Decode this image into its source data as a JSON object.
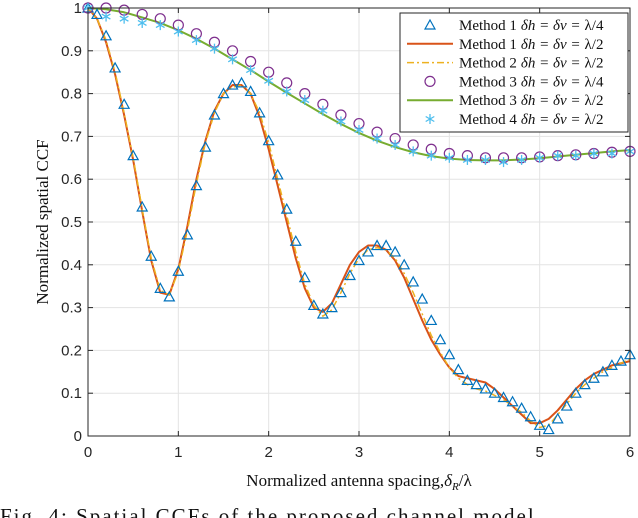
{
  "chart_data": {
    "type": "line",
    "xlabel": "Normalized antenna spacing,δ_R/λ",
    "xlabel_main": "Normalized antenna spacing,",
    "xlabel_math": "δ",
    "xlabel_sub": "R",
    "xlabel_tail": "/λ",
    "ylabel": "Normalized spatial CCF",
    "xlim": [
      0,
      6
    ],
    "ylim": [
      0,
      1
    ],
    "xticks": [
      "0",
      "1",
      "2",
      "3",
      "4",
      "5",
      "6"
    ],
    "yticks": [
      "0",
      "0.1",
      "0.2",
      "0.3",
      "0.4",
      "0.5",
      "0.6",
      "0.7",
      "0.8",
      "0.9",
      "1"
    ],
    "grid": true,
    "legend_position": "top-right",
    "series": [
      {
        "name": "Method 1 δh = δv = λ/4",
        "method": "Method 1",
        "spacing": "λ/4",
        "style": "triangle",
        "color": "#0072BD",
        "x": [
          0,
          0.1,
          0.2,
          0.3,
          0.4,
          0.5,
          0.6,
          0.7,
          0.8,
          0.9,
          1.0,
          1.1,
          1.2,
          1.3,
          1.4,
          1.5,
          1.6,
          1.7,
          1.8,
          1.9,
          2.0,
          2.1,
          2.2,
          2.3,
          2.4,
          2.5,
          2.6,
          2.7,
          2.8,
          2.9,
          3.0,
          3.1,
          3.2,
          3.3,
          3.4,
          3.5,
          3.6,
          3.7,
          3.8,
          3.9,
          4.0,
          4.1,
          4.2,
          4.3,
          4.4,
          4.5,
          4.6,
          4.7,
          4.8,
          4.9,
          5.0,
          5.1,
          5.2,
          5.3,
          5.4,
          5.5,
          5.6,
          5.7,
          5.8,
          5.9,
          6.0
        ],
        "y": [
          1.0,
          0.985,
          0.935,
          0.86,
          0.775,
          0.655,
          0.535,
          0.42,
          0.345,
          0.325,
          0.385,
          0.47,
          0.585,
          0.675,
          0.75,
          0.8,
          0.82,
          0.825,
          0.805,
          0.755,
          0.69,
          0.61,
          0.53,
          0.455,
          0.37,
          0.305,
          0.285,
          0.3,
          0.335,
          0.375,
          0.41,
          0.43,
          0.445,
          0.445,
          0.43,
          0.4,
          0.36,
          0.32,
          0.27,
          0.225,
          0.19,
          0.155,
          0.13,
          0.12,
          0.11,
          0.1,
          0.09,
          0.08,
          0.065,
          0.045,
          0.025,
          0.015,
          0.04,
          0.07,
          0.1,
          0.12,
          0.135,
          0.15,
          0.165,
          0.175,
          0.19
        ]
      },
      {
        "name": "Method 1 δh = δv = λ/2",
        "method": "Method 1",
        "spacing": "λ/2",
        "style": "solid",
        "color": "#D95319",
        "x": [
          0,
          0.1,
          0.2,
          0.3,
          0.4,
          0.5,
          0.6,
          0.7,
          0.8,
          0.9,
          1.0,
          1.1,
          1.2,
          1.3,
          1.4,
          1.5,
          1.6,
          1.7,
          1.8,
          1.9,
          2.0,
          2.1,
          2.2,
          2.3,
          2.4,
          2.5,
          2.6,
          2.7,
          2.8,
          2.9,
          3.0,
          3.1,
          3.2,
          3.3,
          3.4,
          3.5,
          3.6,
          3.7,
          3.8,
          3.9,
          4.0,
          4.1,
          4.2,
          4.3,
          4.4,
          4.5,
          4.6,
          4.7,
          4.8,
          4.9,
          5.0,
          5.1,
          5.2,
          5.3,
          5.4,
          5.5,
          5.6,
          5.7,
          5.8,
          5.9,
          6.0
        ],
        "y": [
          1.0,
          0.975,
          0.92,
          0.845,
          0.75,
          0.645,
          0.525,
          0.41,
          0.335,
          0.33,
          0.39,
          0.49,
          0.6,
          0.69,
          0.76,
          0.8,
          0.82,
          0.82,
          0.8,
          0.745,
          0.67,
          0.585,
          0.5,
          0.415,
          0.345,
          0.3,
          0.29,
          0.31,
          0.355,
          0.4,
          0.43,
          0.445,
          0.445,
          0.435,
          0.41,
          0.37,
          0.32,
          0.27,
          0.225,
          0.19,
          0.16,
          0.14,
          0.135,
          0.13,
          0.125,
          0.11,
          0.09,
          0.07,
          0.05,
          0.03,
          0.03,
          0.04,
          0.06,
          0.085,
          0.11,
          0.13,
          0.145,
          0.155,
          0.165,
          0.17,
          0.175
        ]
      },
      {
        "name": "Method 2 δh = δv = λ/2",
        "method": "Method 2",
        "spacing": "λ/2",
        "style": "dashdot",
        "color": "#EDB120",
        "x": [
          0,
          0.1,
          0.2,
          0.3,
          0.4,
          0.5,
          0.6,
          0.7,
          0.8,
          0.9,
          1.0,
          1.1,
          1.2,
          1.3,
          1.4,
          1.5,
          1.6,
          1.7,
          1.8,
          1.9,
          2.0,
          2.1,
          2.2,
          2.3,
          2.4,
          2.5,
          2.6,
          2.7,
          2.8,
          2.9,
          3.0,
          3.1,
          3.2,
          3.3,
          3.4,
          3.5,
          3.6,
          3.7,
          3.8,
          3.9,
          4.0,
          4.1,
          4.2,
          4.3,
          4.4,
          4.5,
          4.6,
          4.7,
          4.8,
          4.9,
          5.0,
          5.1,
          5.2,
          5.3,
          5.4,
          5.5,
          5.6,
          5.7,
          5.8,
          5.9,
          6.0
        ],
        "y": [
          1.0,
          0.975,
          0.925,
          0.85,
          0.755,
          0.65,
          0.53,
          0.415,
          0.34,
          0.33,
          0.385,
          0.48,
          0.59,
          0.685,
          0.755,
          0.8,
          0.815,
          0.82,
          0.8,
          0.755,
          0.685,
          0.6,
          0.515,
          0.43,
          0.355,
          0.305,
          0.28,
          0.295,
          0.335,
          0.38,
          0.415,
          0.435,
          0.44,
          0.435,
          0.415,
          0.38,
          0.335,
          0.285,
          0.235,
          0.195,
          0.16,
          0.135,
          0.12,
          0.11,
          0.105,
          0.095,
          0.085,
          0.07,
          0.055,
          0.035,
          0.02,
          0.025,
          0.05,
          0.075,
          0.1,
          0.12,
          0.135,
          0.15,
          0.16,
          0.17,
          0.18
        ]
      },
      {
        "name": "Method 3 δh = δv = λ/4",
        "method": "Method 3",
        "spacing": "λ/4",
        "style": "circle",
        "color": "#7E2F8E",
        "x": [
          0,
          0.2,
          0.4,
          0.6,
          0.8,
          1.0,
          1.2,
          1.4,
          1.6,
          1.8,
          2.0,
          2.2,
          2.4,
          2.6,
          2.8,
          3.0,
          3.2,
          3.4,
          3.6,
          3.8,
          4.0,
          4.2,
          4.4,
          4.6,
          4.8,
          5.0,
          5.2,
          5.4,
          5.6,
          5.8,
          6.0
        ],
        "y": [
          1.0,
          1.0,
          0.995,
          0.985,
          0.975,
          0.96,
          0.94,
          0.92,
          0.9,
          0.875,
          0.85,
          0.825,
          0.8,
          0.775,
          0.75,
          0.73,
          0.71,
          0.695,
          0.68,
          0.67,
          0.66,
          0.655,
          0.65,
          0.65,
          0.65,
          0.652,
          0.655,
          0.657,
          0.66,
          0.663,
          0.665
        ]
      },
      {
        "name": "Method 3 δh = δv = λ/2",
        "method": "Method 3",
        "spacing": "λ/2",
        "style": "solid",
        "color": "#77AC30",
        "x": [
          0,
          0.2,
          0.4,
          0.6,
          0.8,
          1.0,
          1.2,
          1.4,
          1.6,
          1.8,
          2.0,
          2.2,
          2.4,
          2.6,
          2.8,
          3.0,
          3.2,
          3.4,
          3.6,
          3.8,
          4.0,
          4.2,
          4.4,
          4.6,
          4.8,
          5.0,
          5.2,
          5.4,
          5.6,
          5.8,
          6.0
        ],
        "y": [
          1.0,
          0.997,
          0.99,
          0.978,
          0.965,
          0.948,
          0.928,
          0.905,
          0.88,
          0.855,
          0.828,
          0.802,
          0.777,
          0.752,
          0.729,
          0.708,
          0.69,
          0.675,
          0.663,
          0.654,
          0.648,
          0.645,
          0.644,
          0.644,
          0.646,
          0.649,
          0.653,
          0.657,
          0.661,
          0.665,
          0.668
        ]
      },
      {
        "name": "Method 4 δh = δv = λ/2",
        "method": "Method 4",
        "spacing": "λ/2",
        "style": "asterisk",
        "color": "#4DBEEE",
        "x": [
          0,
          0.2,
          0.4,
          0.6,
          0.8,
          1.0,
          1.2,
          1.4,
          1.6,
          1.8,
          2.0,
          2.2,
          2.4,
          2.6,
          2.8,
          3.0,
          3.2,
          3.4,
          3.6,
          3.8,
          4.0,
          4.2,
          4.4,
          4.6,
          4.8,
          5.0,
          5.2,
          5.4,
          5.6,
          5.8,
          6.0
        ],
        "y": [
          1.0,
          0.98,
          0.975,
          0.965,
          0.96,
          0.945,
          0.925,
          0.905,
          0.88,
          0.855,
          0.83,
          0.805,
          0.785,
          0.76,
          0.735,
          0.715,
          0.695,
          0.68,
          0.665,
          0.655,
          0.65,
          0.645,
          0.645,
          0.64,
          0.645,
          0.65,
          0.655,
          0.655,
          0.66,
          0.66,
          0.665
        ]
      }
    ]
  },
  "legend_eq": "δh = δv =",
  "caption": "Fig. 4: Spatial CCFs of the proposed channel model"
}
